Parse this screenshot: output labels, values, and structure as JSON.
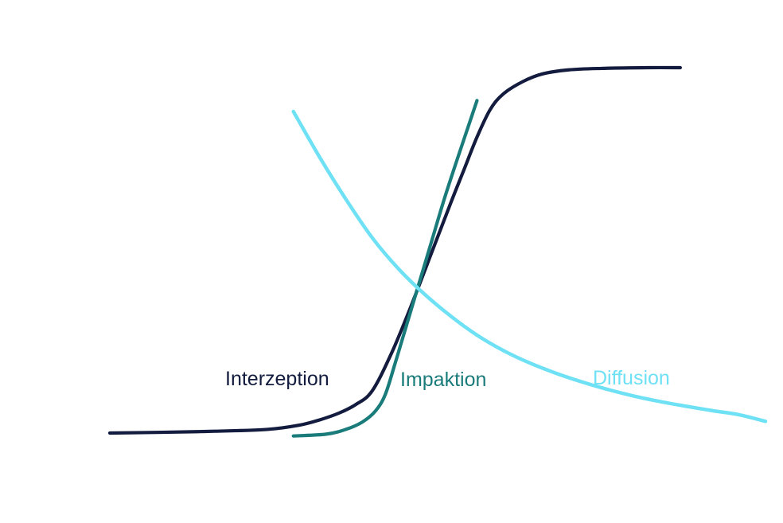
{
  "chart_data": {
    "type": "line",
    "title": "",
    "xlabel": "",
    "ylabel": "",
    "xlim": [
      0,
      100
    ],
    "ylim": [
      0,
      100
    ],
    "grid": false,
    "legend": "none",
    "series": [
      {
        "name": "Interzeption",
        "color": "#131c3e",
        "x": [
          0,
          8,
          16,
          24,
          29,
          32,
          35,
          37.5,
          40,
          43,
          46,
          49,
          52,
          54,
          56,
          58,
          60,
          63,
          66,
          70,
          75,
          82,
          87
        ],
        "y": [
          0,
          0.2,
          0.5,
          1.0,
          2.2,
          3.6,
          5.5,
          7.8,
          11.5,
          22,
          35,
          49,
          63,
          72,
          81,
          88.5,
          92.8,
          96.2,
          98.3,
          99.4,
          99.8,
          100,
          100
        ]
      },
      {
        "name": "Impaktion",
        "color": "#1a7b7b",
        "x": [
          28,
          33,
          36,
          38.5,
          40.5,
          42,
          43.5,
          45,
          47,
          49,
          51,
          53,
          54.5,
          56
        ],
        "y": [
          -0.8,
          -0.3,
          1.0,
          3.0,
          6.0,
          10.5,
          19,
          28,
          40,
          52,
          64,
          75,
          83,
          91
        ]
      },
      {
        "name": "Diffusion",
        "color": "#6fe1f5",
        "x": [
          28,
          32,
          36,
          40,
          44,
          48,
          52,
          56,
          60,
          64,
          68,
          72,
          76,
          80,
          84,
          88,
          92,
          96,
          100
        ],
        "y": [
          88,
          75.5,
          64,
          53.5,
          45,
          38,
          32,
          26.8,
          22.6,
          19.2,
          16.4,
          14,
          11.9,
          10.1,
          8.6,
          7.3,
          6.1,
          5.0,
          3.2
        ]
      }
    ],
    "annotations": [
      {
        "text": "Interzeption",
        "series": "Interzeption"
      },
      {
        "text": "Impaktion",
        "series": "Impaktion"
      },
      {
        "text": "Diffusion",
        "series": "Diffusion"
      }
    ]
  }
}
